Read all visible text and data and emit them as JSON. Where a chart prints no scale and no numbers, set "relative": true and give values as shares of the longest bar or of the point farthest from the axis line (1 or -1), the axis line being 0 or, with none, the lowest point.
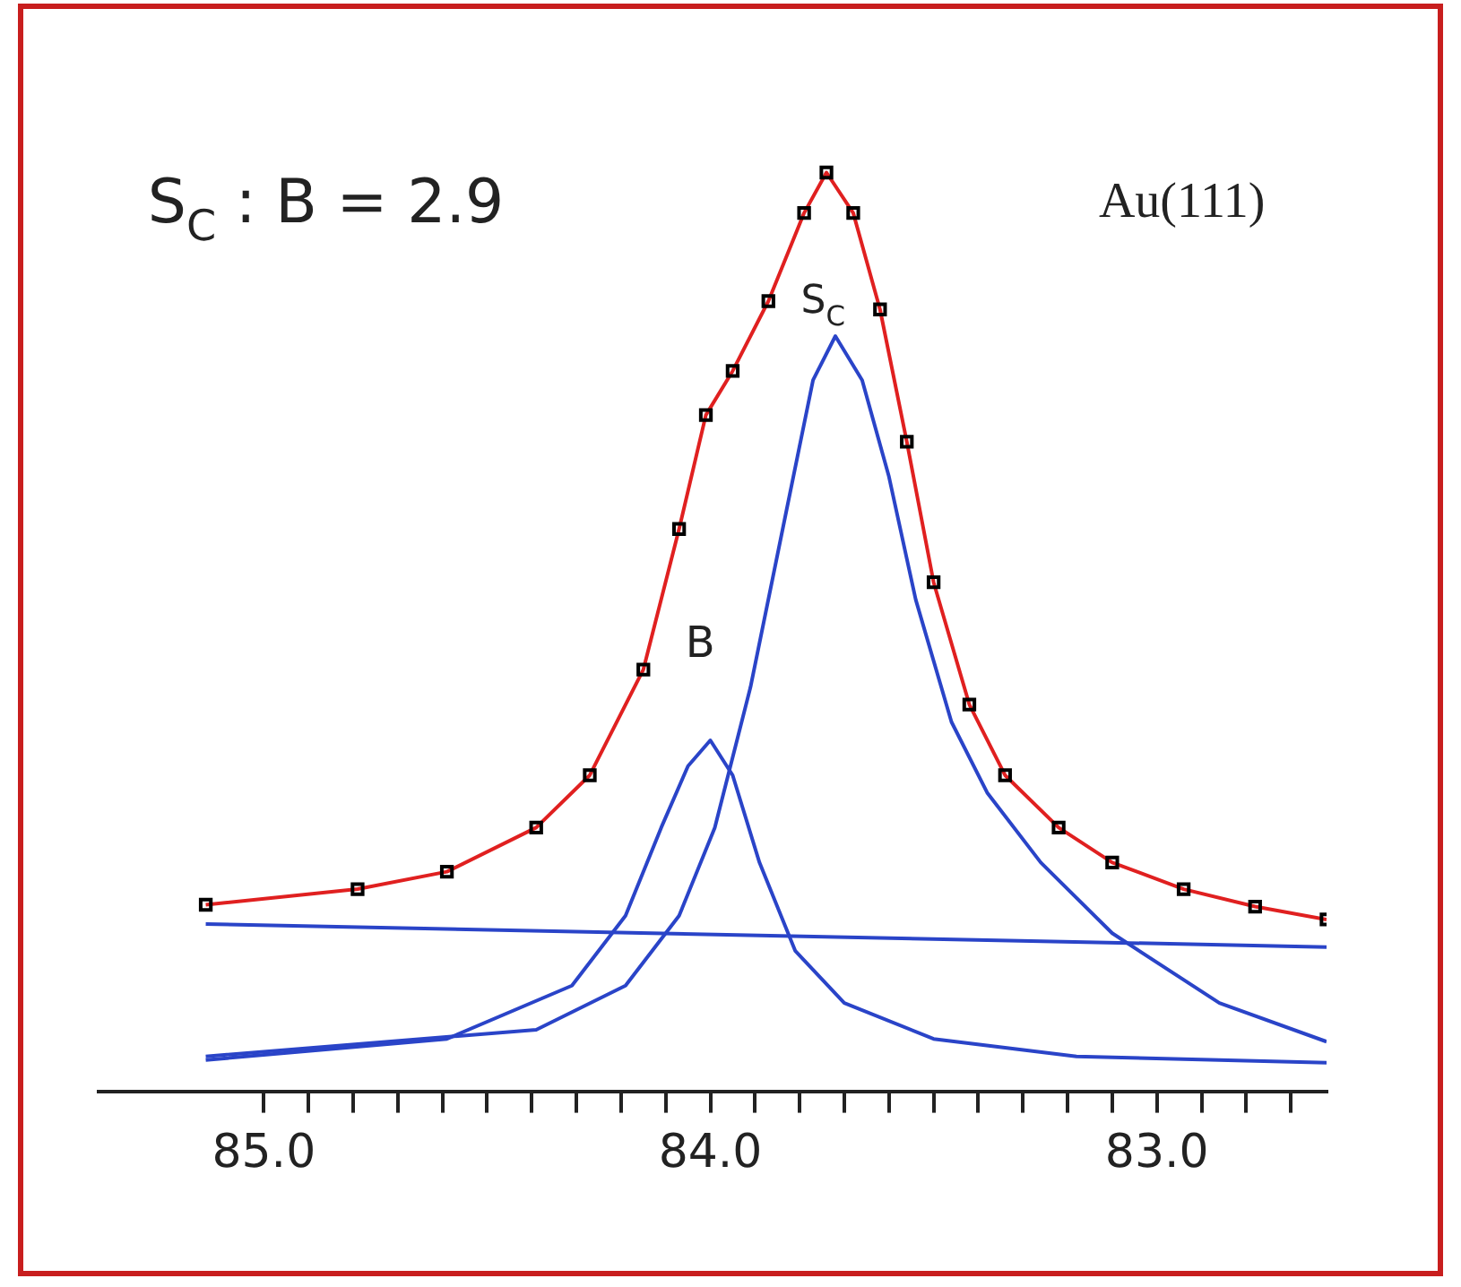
{
  "chart_data": {
    "type": "line",
    "relative": true,
    "xlim": [
      85.37,
      82.62
    ],
    "xticks": [
      {
        "value": 85.0,
        "label": "85.0"
      },
      {
        "value": 84.9,
        "label": null
      },
      {
        "value": 84.8,
        "label": null
      },
      {
        "value": 84.7,
        "label": null
      },
      {
        "value": 84.6,
        "label": null
      },
      {
        "value": 84.5,
        "label": null
      },
      {
        "value": 84.4,
        "label": null
      },
      {
        "value": 84.3,
        "label": null
      },
      {
        "value": 84.2,
        "label": null
      },
      {
        "value": 84.1,
        "label": null
      },
      {
        "value": 84.0,
        "label": "84.0"
      },
      {
        "value": 83.9,
        "label": null
      },
      {
        "value": 83.8,
        "label": null
      },
      {
        "value": 83.7,
        "label": null
      },
      {
        "value": 83.6,
        "label": null
      },
      {
        "value": 83.5,
        "label": null
      },
      {
        "value": 83.4,
        "label": null
      },
      {
        "value": 83.3,
        "label": null
      },
      {
        "value": 83.2,
        "label": null
      },
      {
        "value": 83.1,
        "label": null
      },
      {
        "value": 83.0,
        "label": "83.0"
      },
      {
        "value": 82.9,
        "label": null
      },
      {
        "value": 82.8,
        "label": null
      },
      {
        "value": 82.7,
        "label": null
      }
    ],
    "series": [
      {
        "type": "scatter",
        "marker": "square",
        "color": "#000000",
        "x": [
          85.13,
          84.79,
          84.59,
          84.39,
          84.27,
          84.15,
          84.07,
          84.01,
          83.95,
          83.87,
          83.79,
          83.74,
          83.68,
          83.62,
          83.56,
          83.5,
          83.42,
          83.34,
          83.22,
          83.1,
          82.94,
          82.78,
          82.62
        ],
        "values": [
          0.203,
          0.22,
          0.239,
          0.287,
          0.344,
          0.459,
          0.612,
          0.736,
          0.784,
          0.86,
          0.956,
          1.0,
          0.956,
          0.851,
          0.707,
          0.554,
          0.421,
          0.344,
          0.287,
          0.249,
          0.22,
          0.201,
          0.187
        ]
      },
      {
        "color": "#e02020",
        "x": [
          85.13,
          84.79,
          84.59,
          84.39,
          84.27,
          84.15,
          84.07,
          84.01,
          83.95,
          83.87,
          83.79,
          83.74,
          83.68,
          83.62,
          83.56,
          83.5,
          83.42,
          83.34,
          83.22,
          83.1,
          82.94,
          82.78,
          82.62
        ],
        "values": [
          0.203,
          0.22,
          0.239,
          0.287,
          0.344,
          0.459,
          0.612,
          0.736,
          0.784,
          0.86,
          0.956,
          1.0,
          0.956,
          0.851,
          0.707,
          0.554,
          0.421,
          0.344,
          0.287,
          0.249,
          0.22,
          0.201,
          0.187
        ]
      },
      {
        "color": "#2a44c8",
        "x": [
          85.13,
          82.62
        ],
        "values": [
          0.182,
          0.157
        ]
      },
      {
        "color": "#2a44c8",
        "x": [
          85.13,
          84.39,
          84.19,
          84.07,
          83.99,
          83.91,
          83.83,
          83.77,
          83.72,
          83.66,
          83.6,
          83.54,
          83.46,
          83.38,
          83.26,
          83.1,
          82.86,
          82.62
        ],
        "values": [
          0.038,
          0.067,
          0.115,
          0.191,
          0.287,
          0.44,
          0.631,
          0.774,
          0.822,
          0.774,
          0.669,
          0.535,
          0.402,
          0.325,
          0.249,
          0.172,
          0.096,
          0.054
        ]
      },
      {
        "color": "#2a44c8",
        "x": [
          85.13,
          84.59,
          84.31,
          84.19,
          84.11,
          84.05,
          84.0,
          83.95,
          83.89,
          83.81,
          83.7,
          83.5,
          83.18,
          82.62
        ],
        "values": [
          0.034,
          0.057,
          0.115,
          0.191,
          0.287,
          0.354,
          0.382,
          0.344,
          0.249,
          0.153,
          0.096,
          0.057,
          0.038,
          0.031
        ]
      }
    ],
    "annotations": [
      "S$_{C}$ : B = 2.9",
      "Au(111)",
      "S$_{C}$",
      "B"
    ]
  }
}
